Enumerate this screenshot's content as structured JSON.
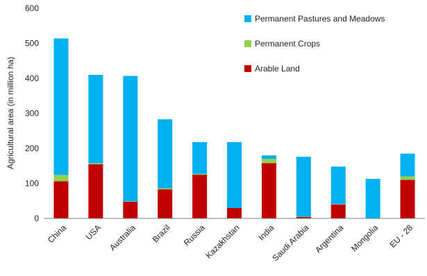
{
  "chart_data": {
    "type": "bar",
    "stacked": true,
    "categories": [
      "China",
      "USA",
      "Australia",
      "Brazil",
      "Russia",
      "Kazakhstan",
      "India",
      "Saudi Arabia",
      "Argentina",
      "Mongolia",
      "EU - 28"
    ],
    "series": [
      {
        "name": "Arable Land",
        "color": "#c00000",
        "values": [
          106,
          155,
          48,
          83,
          125,
          30,
          158,
          4,
          40,
          1,
          110
        ]
      },
      {
        "name": "Permanent Crops",
        "color": "#92d050",
        "values": [
          18,
          3,
          1,
          3,
          2,
          0,
          12,
          1,
          1,
          0,
          10
        ]
      },
      {
        "name": "Permanent Pastures and Meadows",
        "color": "#00b0f0",
        "values": [
          390,
          252,
          358,
          197,
          91,
          188,
          10,
          171,
          107,
          112,
          65
        ]
      }
    ],
    "title": "",
    "xlabel": "",
    "ylabel": "Agricultural area (in million ha)",
    "ylim": [
      0,
      600
    ],
    "yticks": [
      0,
      100,
      200,
      300,
      400,
      500,
      600
    ],
    "grid": false,
    "legend_position": "top-right",
    "legend_order": [
      "Permanent Pastures and Meadows",
      "Permanent Crops",
      "Arable Land"
    ]
  }
}
